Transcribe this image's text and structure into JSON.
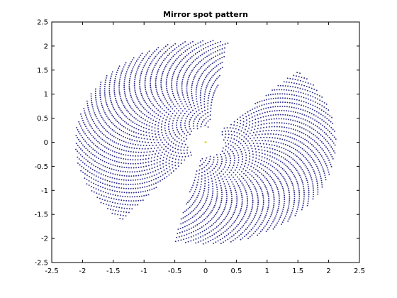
{
  "chart_data": {
    "type": "scatter",
    "title": "Mirror spot pattern",
    "xlabel": "",
    "ylabel": "",
    "xlim": [
      -2.5,
      2.5
    ],
    "ylim": [
      -2.5,
      2.5
    ],
    "x_ticks": [
      -2.5,
      -2,
      -1.5,
      -1,
      -0.5,
      0,
      0.5,
      1,
      1.5,
      2,
      2.5
    ],
    "y_ticks": [
      -2.5,
      -2,
      -1.5,
      -1,
      -0.5,
      0,
      0.5,
      1,
      1.5,
      2,
      2.5
    ],
    "x_tick_labels": [
      "-2.5",
      "-2",
      "-1.5",
      "-1",
      "-0.5",
      "0",
      "0.5",
      "1",
      "1.5",
      "2",
      "2.5"
    ],
    "y_tick_labels": [
      "-2.5",
      "-2",
      "-1.5",
      "-1",
      "-0.5",
      "0",
      "0.5",
      "1",
      "1.5",
      "2",
      "2.5"
    ],
    "grid": false,
    "marker_color": "#2b2b8c",
    "center_marker_color": "#e0e020",
    "pattern": {
      "shape": "dense spot pattern in a disk of outer radius about 2.1 with a central hole of radius about 0.3 and two empty angular wedges",
      "inner_radius": 0.3,
      "outer_radius": 2.12,
      "gaps_deg": [
        [
          -130,
          -104
        ],
        [
          45,
          80
        ]
      ],
      "center_point": [
        0,
        0
      ]
    }
  }
}
